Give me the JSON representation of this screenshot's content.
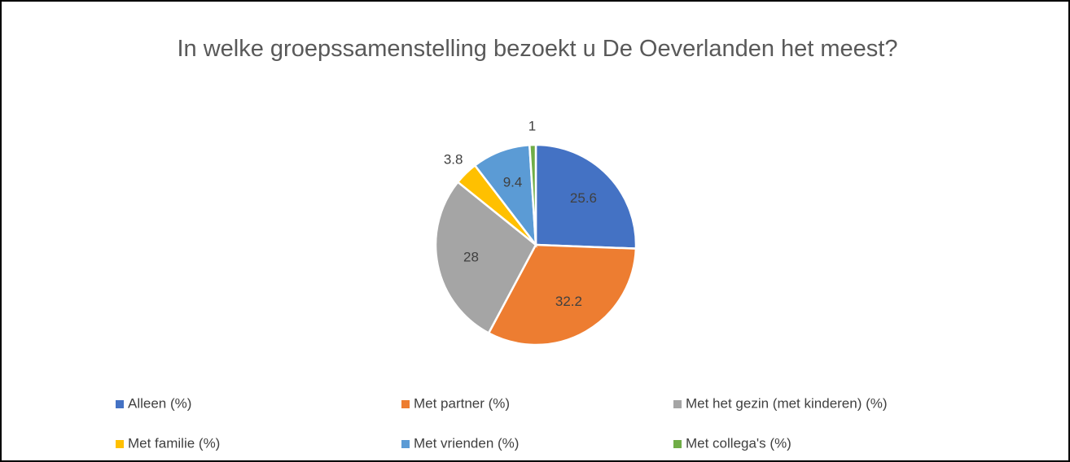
{
  "chart_data": {
    "type": "pie",
    "title": "In welke groepssamenstelling bezoekt u De Oeverlanden het meest?",
    "categories": [
      "Alleen (%)",
      "Met partner (%)",
      "Met het gezin (met kinderen) (%)",
      "Met familie (%)",
      "Met vrienden (%)",
      "Met collega's (%)"
    ],
    "values": [
      25.6,
      32.2,
      28,
      3.8,
      9.4,
      1
    ],
    "colors": [
      "#4472c4",
      "#ed7d31",
      "#a5a5a5",
      "#ffc000",
      "#5b9bd5",
      "#70ad47"
    ],
    "legend": "bottom"
  }
}
